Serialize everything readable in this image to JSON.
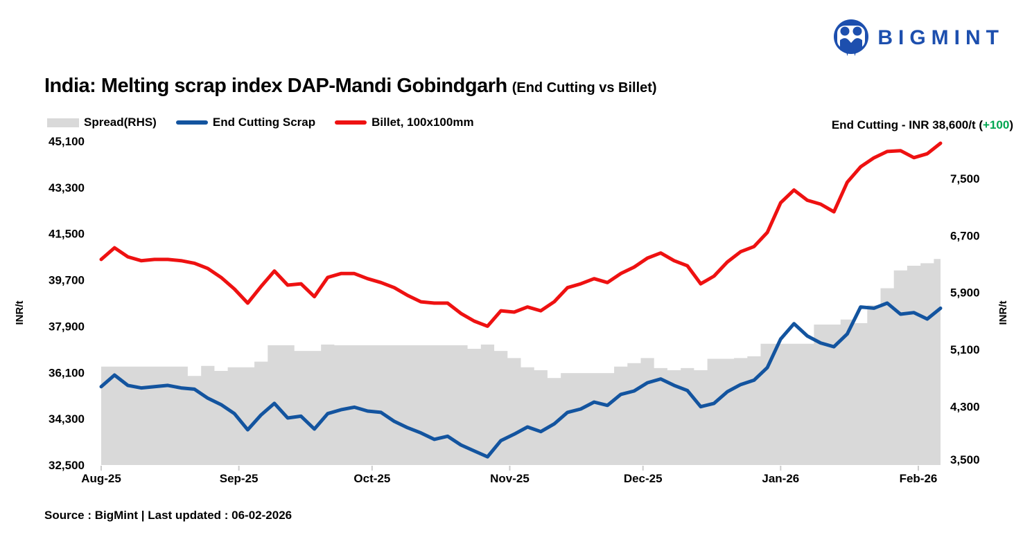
{
  "brand": {
    "logo_text": "BIGMINT",
    "logo_color": "#1d4fae"
  },
  "title": {
    "main": "India: Melting scrap index DAP-Mandi Gobindgarh",
    "suffix": "(End Cutting vs Billet)"
  },
  "legend": [
    {
      "label": "Spread(RHS)",
      "type": "area",
      "color": "#d9d9d9"
    },
    {
      "label": "End Cutting Scrap",
      "type": "line",
      "color": "#13549f"
    },
    {
      "label": "Billet, 100x100mm",
      "type": "line",
      "color": "#ee1111"
    }
  ],
  "annotation": {
    "prefix": "End Cutting - INR 38,600/t (",
    "highlight": "+100",
    "suffix": ")",
    "highlight_color": "#00a651"
  },
  "source_note": "Source : BigMint | Last updated : 06-02-2026",
  "chart_data": {
    "type": "combo",
    "title": "India: Melting scrap index DAP-Mandi Gobindgarh (End Cutting vs Billet)",
    "x_start_date": "2025-08-01",
    "x_step_days": 3,
    "x_tick_labels": [
      "Aug-25",
      "Sep-25",
      "Oct-25",
      "Nov-25",
      "Dec-25",
      "Jan-26",
      "Feb-26"
    ],
    "x_tick_day_offsets": [
      0,
      31,
      61,
      92,
      122,
      153,
      184
    ],
    "x_total_days": 189,
    "grid": false,
    "legend_position": "top-left",
    "left_axis": {
      "label": "INR/t",
      "min": 32500,
      "max": 45100,
      "ticks": [
        {
          "v": 45100,
          "label": "45,100"
        },
        {
          "v": 43300,
          "label": "43,300"
        },
        {
          "v": 41500,
          "label": "41,500"
        },
        {
          "v": 39700,
          "label": "39,700"
        },
        {
          "v": 37900,
          "label": "37,900"
        },
        {
          "v": 36100,
          "label": "36,100"
        },
        {
          "v": 34300,
          "label": "34,300"
        },
        {
          "v": 32500,
          "label": "32,500"
        }
      ]
    },
    "right_axis": {
      "label": "INR/t",
      "min": 3500,
      "max": 8042,
      "ticks": [
        {
          "v": 7500,
          "label": "7,500"
        },
        {
          "v": 6700,
          "label": "6,700"
        },
        {
          "v": 5900,
          "label": "5,900"
        },
        {
          "v": 5100,
          "label": "5,100"
        },
        {
          "v": 4300,
          "label": "4,300"
        },
        {
          "v": 3500,
          "label": "3,500"
        }
      ]
    },
    "series": [
      {
        "name": "Spread(RHS)",
        "type": "area",
        "axis": "right",
        "color": "#d9d9d9",
        "values": [
          4880,
          4880,
          4880,
          4880,
          4880,
          4880,
          4880,
          4750,
          4890,
          4820,
          4870,
          4870,
          4950,
          5180,
          5180,
          5100,
          5100,
          5190,
          5180,
          5180,
          5180,
          5180,
          5180,
          5180,
          5180,
          5180,
          5180,
          5180,
          5130,
          5190,
          5100,
          5000,
          4870,
          4830,
          4720,
          4790,
          4790,
          4790,
          4790,
          4880,
          4930,
          5000,
          4860,
          4830,
          4860,
          4830,
          4990,
          4990,
          5000,
          5025,
          5200,
          5200,
          5200,
          5200,
          5470,
          5470,
          5540,
          5490,
          5740,
          5980,
          6230,
          6295,
          6330,
          6390
        ]
      },
      {
        "name": "End Cutting Scrap",
        "type": "line",
        "axis": "left",
        "color": "#13549f",
        "last_value": 38600,
        "last_change": 100,
        "values": [
          35550,
          36000,
          35600,
          35500,
          35550,
          35600,
          35500,
          35450,
          35100,
          34850,
          34500,
          33870,
          34450,
          34900,
          34330,
          34400,
          33900,
          34500,
          34650,
          34750,
          34600,
          34550,
          34200,
          33950,
          33750,
          33500,
          33620,
          33280,
          33050,
          32820,
          33450,
          33700,
          33980,
          33800,
          34100,
          34550,
          34680,
          34950,
          34820,
          35250,
          35380,
          35700,
          35850,
          35600,
          35400,
          34770,
          34900,
          35350,
          35630,
          35800,
          36290,
          37400,
          38000,
          37520,
          37250,
          37100,
          37600,
          38650,
          38600,
          38800,
          38370,
          38430,
          38180,
          38600
        ]
      },
      {
        "name": "Billet, 100x100mm",
        "type": "line",
        "axis": "left",
        "color": "#ee1111",
        "values": [
          40500,
          40950,
          40600,
          40450,
          40500,
          40500,
          40450,
          40350,
          40150,
          39800,
          39350,
          38800,
          39450,
          40050,
          39500,
          39550,
          39050,
          39800,
          39950,
          39950,
          39750,
          39600,
          39400,
          39100,
          38850,
          38800,
          38800,
          38400,
          38100,
          37900,
          38500,
          38450,
          38650,
          38500,
          38850,
          39400,
          39550,
          39750,
          39600,
          39950,
          40200,
          40550,
          40750,
          40450,
          40250,
          39550,
          39850,
          40400,
          40800,
          41000,
          41550,
          42700,
          43200,
          42800,
          42650,
          42350,
          43500,
          44100,
          44450,
          44700,
          44730,
          44460,
          44610,
          45020
        ]
      }
    ]
  }
}
